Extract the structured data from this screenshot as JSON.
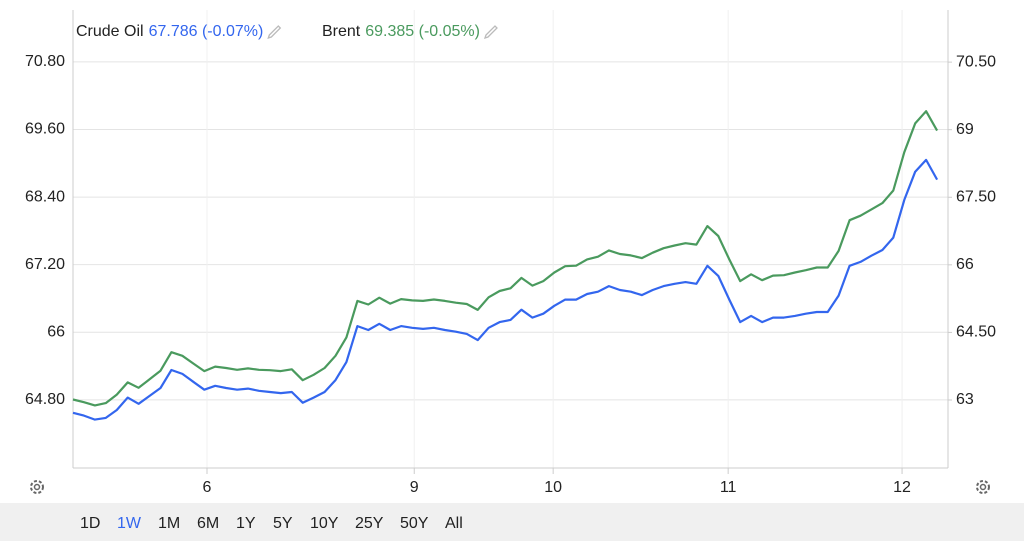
{
  "chart_data": {
    "type": "line",
    "series": [
      {
        "name": "Crude Oil",
        "legend_value": "67.786 (-0.07%)",
        "color": "#3366ee",
        "axis": "y",
        "values": [
          64.57,
          64.52,
          64.45,
          64.48,
          64.62,
          64.84,
          64.73,
          64.87,
          65.01,
          65.33,
          65.26,
          65.12,
          64.98,
          65.05,
          65.01,
          64.98,
          65.0,
          64.96,
          64.94,
          64.92,
          64.94,
          64.75,
          64.84,
          64.94,
          65.15,
          65.47,
          66.11,
          66.04,
          66.15,
          66.04,
          66.11,
          66.08,
          66.06,
          66.08,
          66.04,
          66.01,
          65.97,
          65.86,
          66.08,
          66.18,
          66.22,
          66.4,
          66.26,
          66.33,
          66.47,
          66.58,
          66.58,
          66.68,
          66.72,
          66.82,
          66.75,
          66.72,
          66.66,
          66.75,
          66.82,
          66.86,
          66.89,
          66.86,
          67.18,
          67.0,
          66.58,
          66.18,
          66.29,
          66.18,
          66.26,
          66.26,
          66.29,
          66.33,
          66.36,
          66.36,
          66.65,
          67.18,
          67.25,
          67.36,
          67.46,
          67.68,
          68.35,
          68.85,
          69.06,
          68.71
        ]
      },
      {
        "name": "Brent",
        "legend_value": "69.385 (-0.05%)",
        "color": "#4a9a5e",
        "axis": "y2",
        "values": [
          63.01,
          62.95,
          62.88,
          62.93,
          63.12,
          63.39,
          63.27,
          63.46,
          63.65,
          64.06,
          63.98,
          63.81,
          63.64,
          63.74,
          63.71,
          63.67,
          63.7,
          63.67,
          63.66,
          63.64,
          63.68,
          63.44,
          63.56,
          63.71,
          63.98,
          64.39,
          65.2,
          65.12,
          65.27,
          65.14,
          65.24,
          65.21,
          65.2,
          65.23,
          65.2,
          65.16,
          65.13,
          65.0,
          65.28,
          65.42,
          65.48,
          65.71,
          65.54,
          65.64,
          65.83,
          65.97,
          65.98,
          66.12,
          66.18,
          66.32,
          66.24,
          66.21,
          66.15,
          66.27,
          66.37,
          66.43,
          66.48,
          66.45,
          66.86,
          66.64,
          66.12,
          65.64,
          65.79,
          65.66,
          65.76,
          65.77,
          65.83,
          65.88,
          65.94,
          65.94,
          66.31,
          66.99,
          67.09,
          67.23,
          67.37,
          67.65,
          68.5,
          69.14,
          69.41,
          68.98
        ]
      }
    ],
    "x": [
      0,
      1,
      2,
      3,
      4,
      5,
      6,
      7,
      8,
      9,
      10,
      11,
      12,
      13,
      14,
      15,
      16,
      17,
      18,
      19,
      20,
      21,
      22,
      23,
      24,
      25,
      26,
      27,
      28,
      29,
      30,
      31,
      32,
      33,
      34,
      35,
      36,
      37,
      38,
      39,
      40,
      41,
      42,
      43,
      44,
      45,
      46,
      47,
      48,
      49,
      50,
      51,
      52,
      53,
      54,
      55,
      56,
      57,
      58,
      59,
      60,
      61,
      62,
      63,
      64,
      65,
      66,
      67,
      68,
      69,
      70,
      71,
      72,
      73,
      74,
      75,
      76,
      77,
      78,
      79
    ],
    "xlim": [
      0,
      80
    ],
    "xticks": [
      {
        "value": 12.25,
        "label": "6"
      },
      {
        "value": 31.2,
        "label": "9"
      },
      {
        "value": 43.9,
        "label": "10"
      },
      {
        "value": 59.9,
        "label": "11"
      },
      {
        "value": 75.8,
        "label": "12"
      }
    ],
    "ylim": [
      63.59,
      71.1
    ],
    "yticks": [
      {
        "value": 64.8,
        "label": "64.80"
      },
      66,
      {
        "value": 67.2,
        "label": "67.20"
      },
      {
        "value": 68.4,
        "label": "68.40"
      },
      {
        "value": 69.6,
        "label": "69.60"
      },
      {
        "value": 70.8,
        "label": "70.80"
      }
    ],
    "y2lim": [
      61.49,
      70.88
    ],
    "y2ticks": [
      63,
      {
        "value": 64.5,
        "label": "64.50"
      },
      66,
      {
        "value": 67.5,
        "label": "67.50"
      },
      69,
      {
        "value": 70.5,
        "label": "70.50"
      }
    ],
    "grid": true,
    "ranges": [
      "1D",
      "1W",
      "1M",
      "6M",
      "1Y",
      "5Y",
      "10Y",
      "25Y",
      "50Y",
      "All"
    ],
    "active_range": 1,
    "active_color": "#3366ee"
  }
}
